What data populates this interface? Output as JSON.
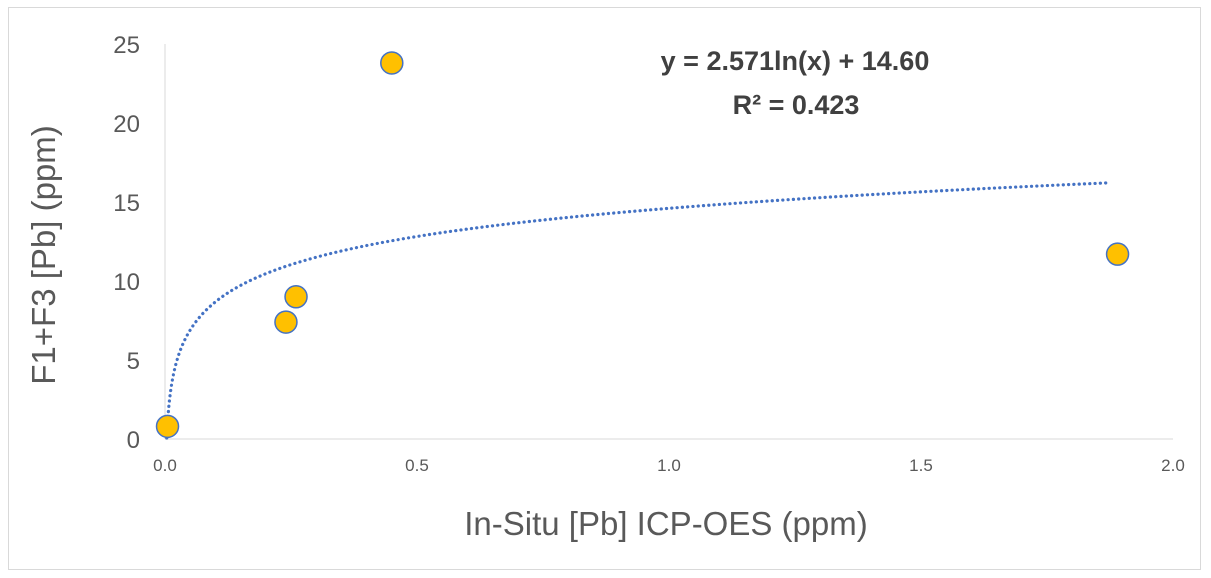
{
  "chart_data": {
    "type": "scatter",
    "title": "",
    "xlabel": "In-Situ [Pb] ICP-OES (ppm)",
    "ylabel": "F1+F3 [Pb] (ppm)",
    "xlim": [
      0,
      2
    ],
    "ylim": [
      0,
      25
    ],
    "x_ticks": [
      "0.0",
      "0.5",
      "1.0",
      "1.5",
      "2.0"
    ],
    "y_ticks": [
      "0",
      "5",
      "10",
      "15",
      "20",
      "25"
    ],
    "grid": false,
    "legend": "none",
    "series": [
      {
        "points": [
          {
            "x": 0.005,
            "y": 0.8
          },
          {
            "x": 0.24,
            "y": 7.4
          },
          {
            "x": 0.26,
            "y": 9.0
          },
          {
            "x": 0.45,
            "y": 23.8
          },
          {
            "x": 1.89,
            "y": 11.7
          }
        ],
        "marker_color": "#FFC000",
        "marker_edge_color": "#4472C4"
      }
    ],
    "trendline": {
      "type": "logarithmic",
      "coefficient": 2.571,
      "intercept": 14.6,
      "x_range": [
        0.003,
        1.87
      ],
      "color": "#4472C4",
      "style": "dotted"
    },
    "annotations": {
      "equation": "y = 2.571ln(x) + 14.60",
      "r_squared": "R² = 0.423"
    }
  }
}
